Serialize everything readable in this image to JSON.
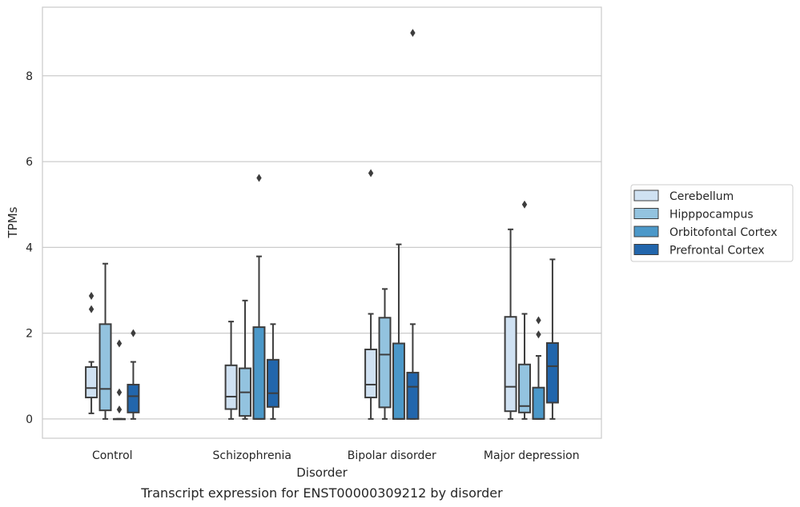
{
  "chart_data": {
    "type": "box",
    "title": "",
    "caption": "Transcript expression for ENST00000309212 by disorder",
    "xlabel": "Disorder",
    "ylabel": "TPMs",
    "ylim": [
      -0.45,
      9.6
    ],
    "yticks": [
      0,
      2,
      4,
      6,
      8
    ],
    "categories": [
      "Control",
      "Schizophrenia",
      "Bipolar disorder",
      "Major depression"
    ],
    "grid": "horizontal",
    "legend_position": "right",
    "series": [
      {
        "name": "Cerebellum",
        "color": "#cfe1f2",
        "boxes": [
          {
            "whislo": 0.13,
            "q1": 0.5,
            "med": 0.72,
            "q3": 1.21,
            "whishi": 1.33,
            "fliers": [
              2.56,
              2.87
            ]
          },
          {
            "whislo": 0.0,
            "q1": 0.23,
            "med": 0.52,
            "q3": 1.25,
            "whishi": 2.27,
            "fliers": []
          },
          {
            "whislo": 0.0,
            "q1": 0.5,
            "med": 0.8,
            "q3": 1.62,
            "whishi": 2.45,
            "fliers": [
              5.73
            ]
          },
          {
            "whislo": 0.0,
            "q1": 0.18,
            "med": 0.75,
            "q3": 2.38,
            "whishi": 4.42,
            "fliers": []
          }
        ]
      },
      {
        "name": "Hipppocampus",
        "color": "#93c3df",
        "boxes": [
          {
            "whislo": 0.0,
            "q1": 0.2,
            "med": 0.7,
            "q3": 2.21,
            "whishi": 3.62,
            "fliers": []
          },
          {
            "whislo": 0.0,
            "q1": 0.07,
            "med": 0.62,
            "q3": 1.18,
            "whishi": 2.76,
            "fliers": []
          },
          {
            "whislo": 0.0,
            "q1": 0.27,
            "med": 1.5,
            "q3": 2.36,
            "whishi": 3.03,
            "fliers": []
          },
          {
            "whislo": 0.0,
            "q1": 0.15,
            "med": 0.3,
            "q3": 1.27,
            "whishi": 2.45,
            "fliers": [
              5.0
            ]
          }
        ]
      },
      {
        "name": "Orbitofontal Cortex",
        "color": "#4b98c9",
        "boxes": [
          {
            "whislo": 0.0,
            "q1": 0.0,
            "med": 0.0,
            "q3": 0.0,
            "whishi": 0.0,
            "fliers": [
              0.22,
              0.62,
              1.76
            ]
          },
          {
            "whislo": 0.0,
            "q1": 0.0,
            "med": 0.0,
            "q3": 2.14,
            "whishi": 3.79,
            "fliers": [
              5.62
            ]
          },
          {
            "whislo": 0.0,
            "q1": 0.0,
            "med": 0.0,
            "q3": 1.76,
            "whishi": 4.07,
            "fliers": []
          },
          {
            "whislo": 0.0,
            "q1": 0.0,
            "med": 0.0,
            "q3": 0.73,
            "whishi": 1.47,
            "fliers": [
              1.97,
              2.3
            ]
          }
        ]
      },
      {
        "name": "Prefrontal Cortex",
        "color": "#2266ac",
        "boxes": [
          {
            "whislo": 0.0,
            "q1": 0.15,
            "med": 0.53,
            "q3": 0.8,
            "whishi": 1.33,
            "fliers": [
              2.0
            ]
          },
          {
            "whislo": 0.0,
            "q1": 0.28,
            "med": 0.6,
            "q3": 1.38,
            "whishi": 2.21,
            "fliers": []
          },
          {
            "whislo": 0.0,
            "q1": 0.0,
            "med": 0.75,
            "q3": 1.08,
            "whishi": 2.21,
            "fliers": [
              9.0
            ]
          },
          {
            "whislo": 0.0,
            "q1": 0.38,
            "med": 1.23,
            "q3": 1.77,
            "whishi": 3.72,
            "fliers": []
          }
        ]
      }
    ]
  }
}
